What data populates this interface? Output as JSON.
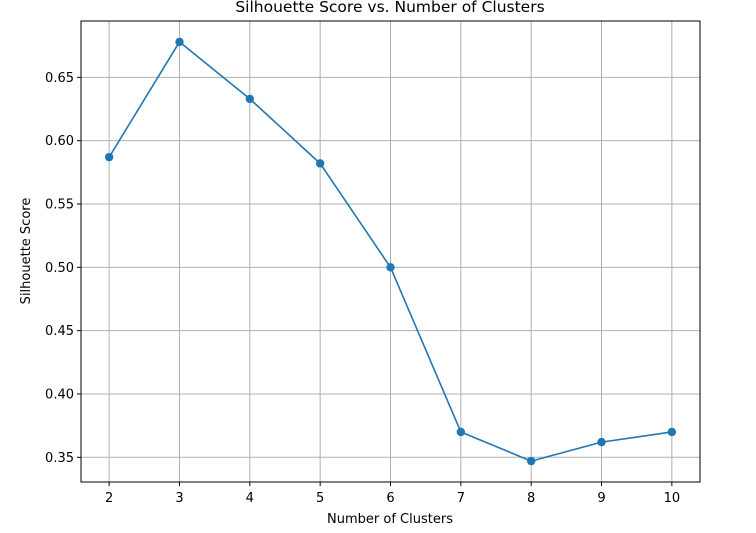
{
  "chart_data": {
    "type": "line",
    "title": "Silhouette Score vs. Number of Clusters",
    "xlabel": "Number of Clusters",
    "ylabel": "Silhouette Score",
    "x": [
      2,
      3,
      4,
      5,
      6,
      7,
      8,
      9,
      10
    ],
    "series": [
      {
        "values": [
          0.587,
          0.678,
          0.633,
          0.582,
          0.5,
          0.37,
          0.347,
          0.362,
          0.37
        ],
        "color": "#1f77b4",
        "marker": "circle"
      }
    ],
    "xticks": [
      "2",
      "3",
      "4",
      "5",
      "6",
      "7",
      "8",
      "9",
      "10"
    ],
    "yticks": [
      "0.35",
      "0.40",
      "0.45",
      "0.50",
      "0.55",
      "0.60",
      "0.65"
    ],
    "xlim": [
      1.6,
      10.4
    ],
    "ylim": [
      0.3305,
      0.6945
    ],
    "grid": true
  }
}
